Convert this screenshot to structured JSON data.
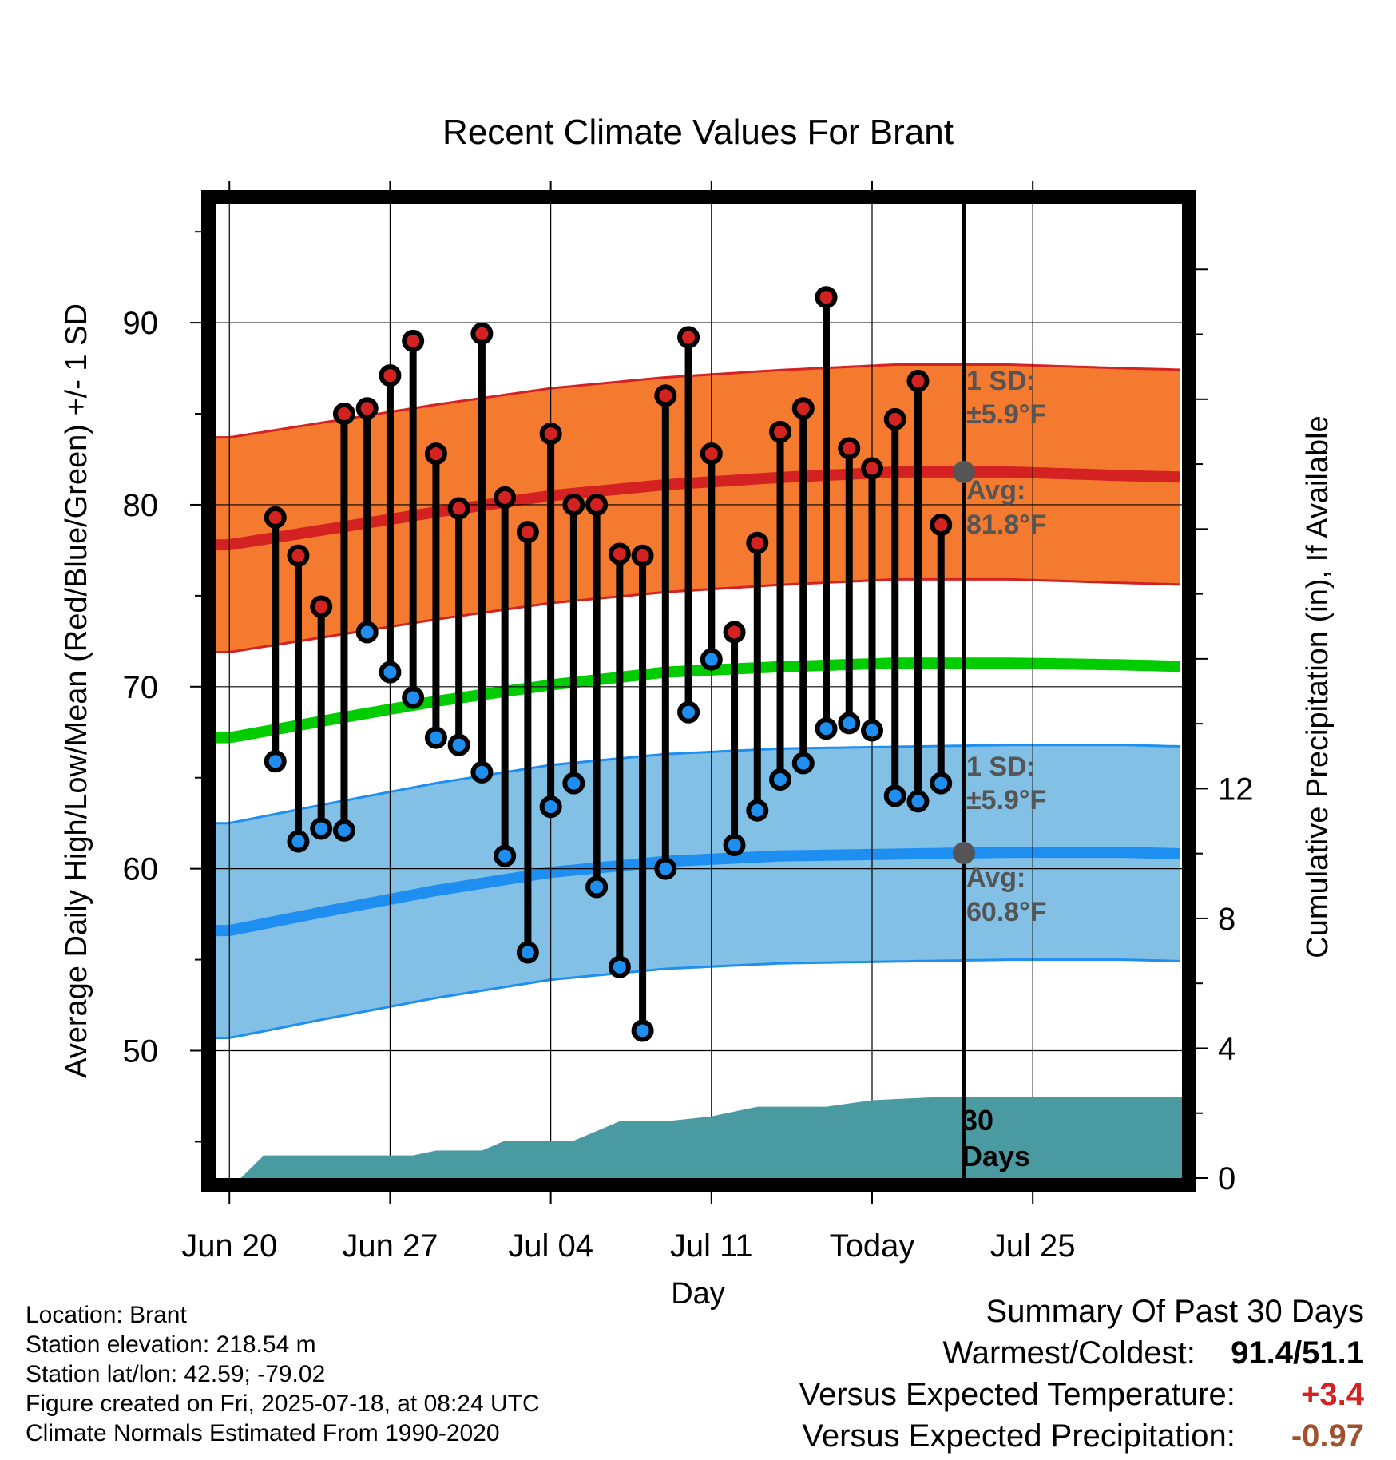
{
  "chart_data": {
    "type": "line",
    "title": "Recent Climate Values For Brant",
    "xlabel": "Day",
    "ylabel": "Average Daily High/Low/Mean (Red/Blue/Green) +/- 1 SD",
    "y2label": "Cumulative Precipitation (in), If Available",
    "x_tick_labels": [
      "Jun 20",
      "Jun 27",
      "Jul 04",
      "Jul 11",
      "Today",
      "Jul 25"
    ],
    "ylim": [
      43,
      96.5
    ],
    "y_ticks": [
      50,
      60,
      70,
      80,
      90
    ],
    "y2lim": [
      0,
      30
    ],
    "y2_ticks": [
      0,
      4,
      8,
      12
    ],
    "grid": true,
    "today_day": 18,
    "day_range": [
      -14.6,
      27.5
    ],
    "daily_high": [
      79.3,
      77.2,
      74.4,
      85.0,
      85.3,
      87.1,
      89.0,
      82.8,
      79.8,
      89.4,
      80.4,
      78.5,
      83.9,
      80.0,
      80.0,
      77.3,
      77.2,
      86.0,
      89.2,
      82.8,
      73.0,
      77.9,
      84.0,
      85.3,
      91.4,
      83.1,
      82.0,
      84.7,
      86.8,
      78.9
    ],
    "daily_low": [
      65.9,
      61.5,
      62.2,
      62.1,
      73.0,
      70.8,
      69.4,
      67.2,
      66.8,
      65.3,
      60.7,
      55.4,
      63.4,
      64.7,
      59.0,
      54.6,
      51.1,
      60.0,
      68.6,
      71.5,
      61.3,
      63.2,
      64.9,
      65.8,
      67.7,
      68.0,
      67.6,
      64.0,
      63.7,
      64.7
    ],
    "normals_days": [
      -14,
      -10,
      -5,
      0,
      5,
      10,
      15,
      20,
      25,
      28
    ],
    "normal_high": [
      77.8,
      78.6,
      79.6,
      80.5,
      81.1,
      81.5,
      81.8,
      81.8,
      81.6,
      81.5
    ],
    "normal_low": [
      56.6,
      57.6,
      58.8,
      59.8,
      60.4,
      60.7,
      60.8,
      60.9,
      60.9,
      60.8
    ],
    "normal_mean": [
      67.2,
      68.1,
      69.2,
      70.1,
      70.8,
      71.1,
      71.3,
      71.3,
      71.2,
      71.1
    ],
    "high_sd": 5.9,
    "low_sd": 5.9,
    "precip_days": [
      -13.5,
      -12.5,
      -6,
      -5,
      -3,
      -2,
      1,
      3,
      5,
      7,
      9,
      12,
      14,
      17,
      27.5
    ],
    "precip_cum": [
      0,
      0.7,
      0.7,
      0.85,
      0.85,
      1.15,
      1.15,
      1.75,
      1.75,
      1.9,
      2.2,
      2.2,
      2.4,
      2.5,
      2.5
    ],
    "annotations": {
      "high_sd_label": "1 SD:",
      "high_sd_value": "±5.9°F",
      "high_avg_label": "Avg:",
      "high_avg_value": "81.8°F",
      "low_sd_label": "1 SD:",
      "low_sd_value": "±5.9°F",
      "low_avg_label": "Avg:",
      "low_avg_value": "60.8°F",
      "days_number": "30",
      "days_word": "Days"
    },
    "colors": {
      "high_band": "#f47a30",
      "high_line": "#d42222",
      "low_band": "#82c0e6",
      "low_line": "#1e8ff0",
      "mean_line": "#00cc00",
      "precip": "#4a9aa2",
      "high_dot": "#d42222",
      "low_dot": "#1e8ff0",
      "today_marker": "#555555"
    }
  },
  "info": {
    "location": "Location: Brant",
    "elevation": "Station elevation: 218.54 m",
    "latlon": "Station lat/lon: 42.59; -79.02",
    "created": "Figure created on Fri, 2025-07-18, at 08:24 UTC",
    "normals": "Climate Normals Estimated From 1990-2020"
  },
  "summary": {
    "title": "Summary Of Past 30 Days",
    "warm_cold_label": "Warmest/Coldest:",
    "warm_cold_value": "91.4/51.1",
    "temp_label": "Versus Expected Temperature:",
    "temp_value": "+3.4",
    "temp_color": "#d42222",
    "precip_label": "Versus Expected Precipitation:",
    "precip_value": "-0.97",
    "precip_color": "#a0522d"
  }
}
